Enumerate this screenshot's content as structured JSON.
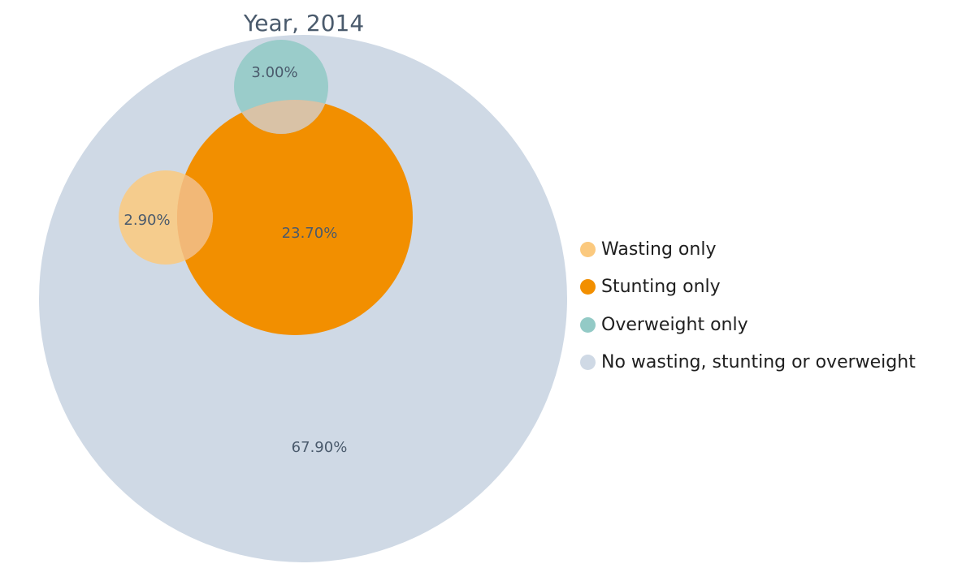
{
  "chart_data": {
    "type": "venn",
    "title": "Year, 2014",
    "sets": [
      {
        "name": "Wasting only",
        "value": 2.9,
        "label": "2.90%",
        "color": "#fbc97e"
      },
      {
        "name": "Stunting only",
        "value": 23.7,
        "label": "23.70%",
        "color": "#f28f00"
      },
      {
        "name": "Overweight only",
        "value": 3.0,
        "label": "3.00%",
        "color": "#93cac6"
      },
      {
        "name": "No wasting, stunting or overweight",
        "value": 67.9,
        "label": "67.90%",
        "color": "#cfd9e5"
      }
    ],
    "legend_position": "right"
  }
}
